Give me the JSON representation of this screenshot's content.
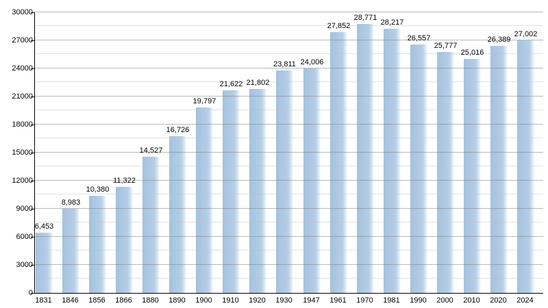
{
  "chart_data": {
    "type": "bar",
    "title": "",
    "xlabel": "",
    "ylabel": "",
    "categories": [
      "1831",
      "1846",
      "1856",
      "1866",
      "1880",
      "1890",
      "1900",
      "1910",
      "1920",
      "1930",
      "1947",
      "1961",
      "1970",
      "1981",
      "1990",
      "2000",
      "2010",
      "2020",
      "2024"
    ],
    "values": [
      6453,
      8983,
      10380,
      11322,
      14527,
      16726,
      19797,
      21622,
      21802,
      23811,
      24006,
      27852,
      28771,
      28217,
      26557,
      25777,
      25016,
      26389,
      27002
    ],
    "value_labels": [
      "6,453",
      "8,983",
      "10,380",
      "11,322",
      "14,527",
      "16,726",
      "19,797",
      "21,622",
      "21,802",
      "23,811",
      "24,006",
      "27,852",
      "28,771",
      "28,217",
      "26,557",
      "25,777",
      "25,016",
      "26,389",
      "27,002"
    ],
    "ylim": [
      0,
      30000
    ],
    "y_major_step": 3000,
    "y_minor_step": 1500,
    "y_tick_labels": [
      "0",
      "3000",
      "6000",
      "9000",
      "12000",
      "15000",
      "18000",
      "21000",
      "24000",
      "27000",
      "30000"
    ],
    "grid": "on",
    "legend": "none"
  },
  "colors": {
    "bar_fill": "#b2cbe5",
    "bar_fill_dark_edge": "#a4c2df",
    "bar_fade": "#ffffff",
    "gridline_major": "#808080",
    "gridline_minor": "#bebebe",
    "axis": "#000000",
    "text": "#000000",
    "background": "#ffffff"
  }
}
